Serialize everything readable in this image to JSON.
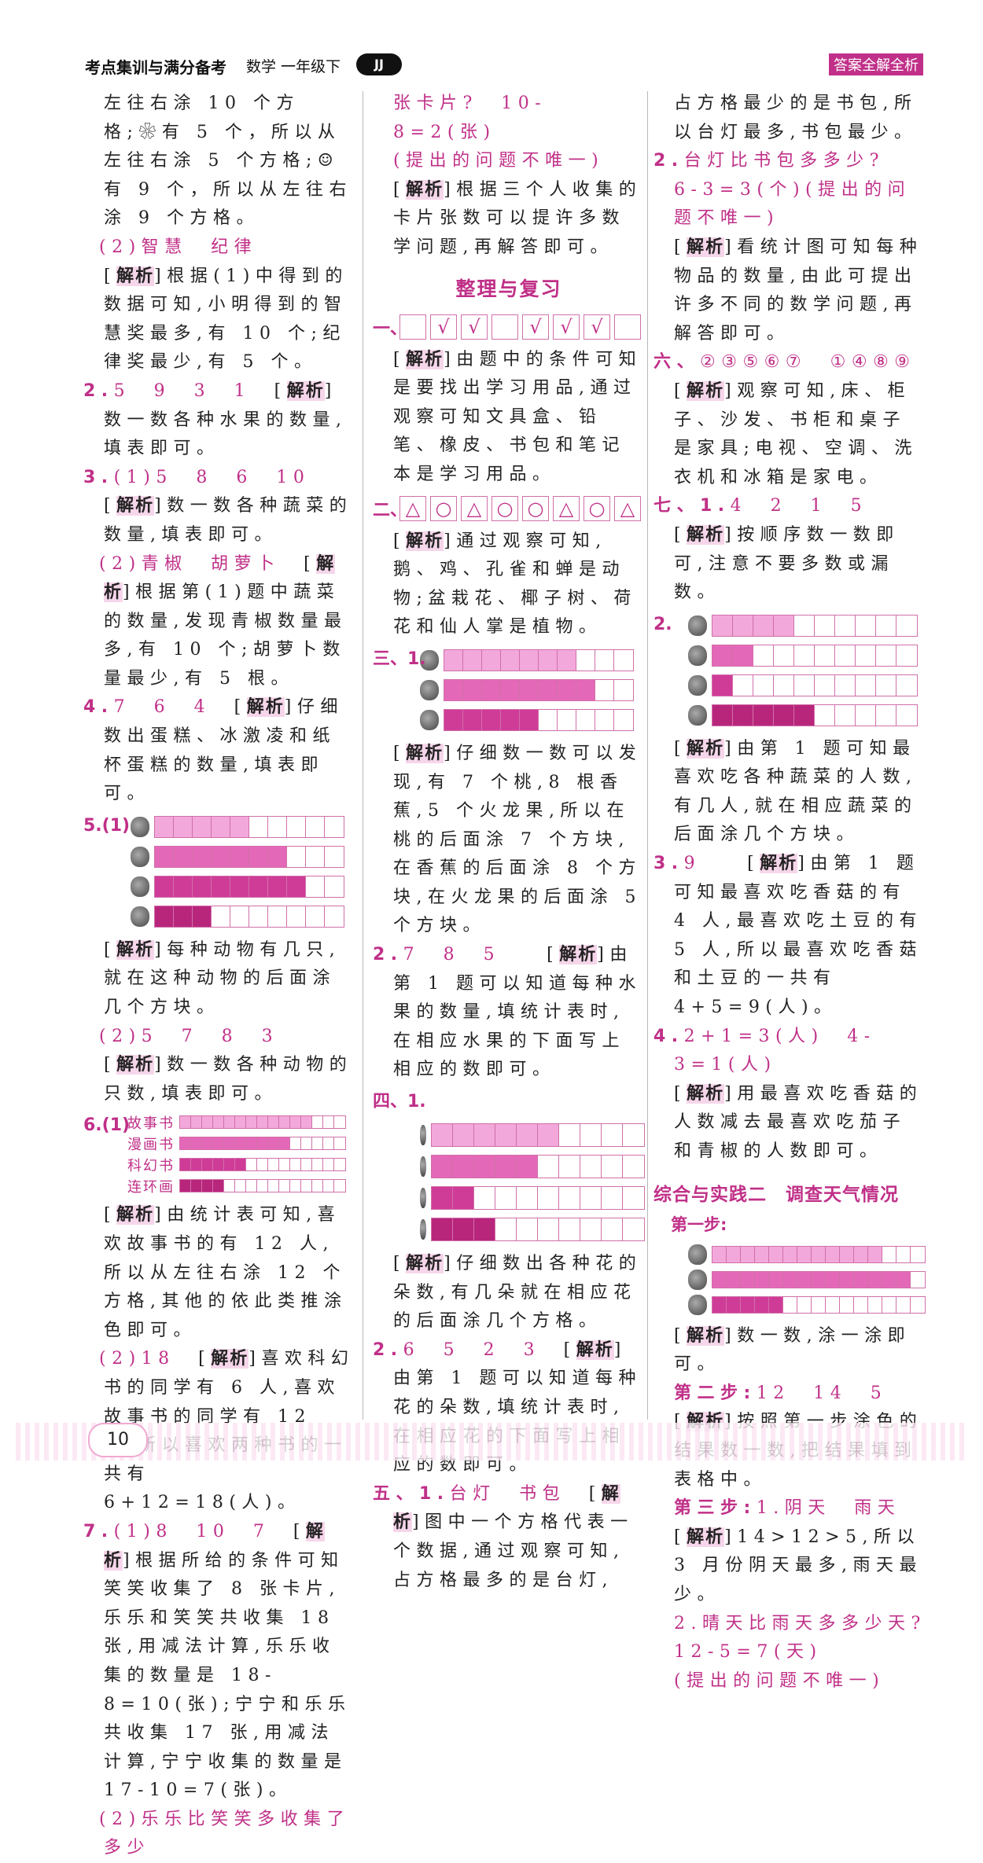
{
  "header": {
    "series": "考点集训与满分备考",
    "subject": "数学 一年级下",
    "edition": "JJ",
    "badge": "答案全解全析"
  },
  "page_number": "10",
  "colors": {
    "accent": "#c03088",
    "bar_shades": [
      "#f2a8da",
      "#e468b8",
      "#cf3c98",
      "#b8267c"
    ]
  },
  "columns": [
    [
      {
        "type": "p",
        "segs": [
          [
            "k",
            "左往右涂 10 个方格;❀有 5 个，所以从左往右涂 5 个方格;☺有 9 个，所以从左往右涂 9 个方格。"
          ]
        ]
      },
      {
        "type": "p",
        "sub": true,
        "segs": [
          [
            "pk",
            "(2)智慧　纪律"
          ]
        ]
      },
      {
        "type": "p",
        "segs": [
          [
            "k",
            "["
          ],
          [
            "j",
            "解析"
          ],
          [
            "k",
            "]根据(1)中得到的数据可知,小明得到的智慧奖最多,有 10 个;纪律奖最少,有 5 个。"
          ]
        ]
      },
      {
        "type": "p",
        "num": true,
        "segs": [
          [
            "pn",
            "2."
          ],
          [
            "pk",
            "5　9　3　1　"
          ],
          [
            "k",
            "["
          ],
          [
            "j",
            "解析"
          ],
          [
            "k",
            "]数一数各种水果的数量,填表即可。"
          ]
        ]
      },
      {
        "type": "p",
        "num": true,
        "segs": [
          [
            "pn",
            "3."
          ],
          [
            "pk",
            "(1)5　8　6　10　"
          ],
          [
            "k",
            "["
          ],
          [
            "j",
            "解析"
          ],
          [
            "k",
            "]数一数各种蔬菜的数量,填表即可。"
          ]
        ]
      },
      {
        "type": "p",
        "sub": true,
        "segs": [
          [
            "pk",
            "(2)青椒　胡萝卜　"
          ],
          [
            "k",
            "["
          ],
          [
            "j",
            "解析"
          ],
          [
            "k",
            "]根据第(1)题中蔬菜的数量,发现青椒数量最多,有 10 个;胡萝卜数量最少,有 5 根。"
          ]
        ]
      },
      {
        "type": "p",
        "num": true,
        "segs": [
          [
            "pn",
            "4."
          ],
          [
            "pk",
            "7　6　4　"
          ],
          [
            "k",
            "["
          ],
          [
            "j",
            "解析"
          ],
          [
            "k",
            "]仔细数出蛋糕、冰激凌和纸杯蛋糕的数量,填表即可。"
          ]
        ]
      },
      {
        "type": "chart",
        "label": "5.(1)",
        "cells": 10,
        "cw": 24,
        "ch": 26,
        "rows": [
          {
            "icon": "lion-icon",
            "value": 5
          },
          {
            "icon": "monkey-icon",
            "value": 7
          },
          {
            "icon": "giraffe-icon",
            "value": 8
          },
          {
            "icon": "ostrich-icon",
            "value": 3
          }
        ]
      },
      {
        "type": "p",
        "segs": [
          [
            "k",
            "["
          ],
          [
            "j",
            "解析"
          ],
          [
            "k",
            "]每种动物有几只,就在这种动物的后面涂几个方块。"
          ]
        ]
      },
      {
        "type": "p",
        "sub": true,
        "segs": [
          [
            "pk",
            "(2)5　7　8　3　　"
          ],
          [
            "k",
            "["
          ],
          [
            "j",
            "解析"
          ],
          [
            "k",
            "]数一数各种动物的只数,填表即可。"
          ]
        ]
      },
      {
        "type": "chart",
        "label": "6.(1)",
        "cells": 15,
        "cw": 14,
        "ch": 15,
        "rows": [
          {
            "label": "故事书",
            "value": 12
          },
          {
            "label": "漫画书",
            "value": 10
          },
          {
            "label": "科幻书",
            "value": 6
          },
          {
            "label": "连环画",
            "value": 4
          }
        ]
      },
      {
        "type": "p",
        "segs": [
          [
            "k",
            "["
          ],
          [
            "j",
            "解析"
          ],
          [
            "k",
            "]由统计表可知,喜欢故事书的有 12 人,所以从左往右涂 12 个方格,其他的依此类推涂色即可。"
          ]
        ]
      },
      {
        "type": "p",
        "sub": true,
        "segs": [
          [
            "pk",
            "(2)18　"
          ],
          [
            "k",
            "["
          ],
          [
            "j",
            "解析"
          ],
          [
            "k",
            "]喜欢科幻书的同学有 6 人,喜欢故事书的同学有 12 人,所以喜欢两种书的一共有 6+12=18(人)。"
          ]
        ]
      },
      {
        "type": "p",
        "num": true,
        "segs": [
          [
            "pn",
            "7."
          ],
          [
            "pk",
            "(1)8　10　7　"
          ],
          [
            "k",
            "["
          ],
          [
            "j",
            "解析"
          ],
          [
            "k",
            "]根据所给的条件可知笑笑收集了 8 张卡片,乐乐和笑笑共收集 18 张,用减法计算,乐乐收集的数量是 18-8=10(张);宁宁和乐乐共收集 17 张,用减法计算,宁宁收集的数量是 17-10=7(张)。"
          ]
        ]
      },
      {
        "type": "p",
        "sub": true,
        "segs": [
          [
            "pk",
            "(2)乐乐比笑笑多收集了多少"
          ]
        ]
      }
    ],
    [
      {
        "type": "p",
        "segs": [
          [
            "pk",
            "张卡片?　10-8=2(张)"
          ]
        ]
      },
      {
        "type": "p",
        "segs": [
          [
            "pk",
            "(提出的问题不唯一)"
          ]
        ]
      },
      {
        "type": "p",
        "segs": [
          [
            "k",
            "["
          ],
          [
            "j",
            "解析"
          ],
          [
            "k",
            "]根据三个人收集的卡片张数可以提许多数学问题,再解答即可。"
          ]
        ]
      },
      {
        "type": "h1",
        "text": "整理与复习"
      },
      {
        "type": "boxes",
        "label": "一、",
        "marks": [
          "",
          "√",
          "√",
          "",
          "√",
          "√",
          "√",
          ""
        ]
      },
      {
        "type": "p",
        "segs": [
          [
            "k",
            "["
          ],
          [
            "j",
            "解析"
          ],
          [
            "k",
            "]由题中的条件可知是要找出学习用品,通过观察可知文具盒、铅笔、橡皮、书包和笔记本是学习用品。"
          ]
        ]
      },
      {
        "type": "boxes",
        "label": "二、",
        "marks": [
          "△",
          "○",
          "△",
          "○",
          "○",
          "△",
          "○",
          "△"
        ]
      },
      {
        "type": "p",
        "segs": [
          [
            "k",
            "["
          ],
          [
            "j",
            "解析"
          ],
          [
            "k",
            "]通过观察可知,鹅、鸡、孔雀和蝉是动物;盆栽花、椰子树、荷花和仙人掌是植物。"
          ]
        ]
      },
      {
        "type": "chart",
        "label": "三、1.",
        "cells": 10,
        "cw": 24,
        "ch": 26,
        "rows": [
          {
            "icon": "peach-icon",
            "value": 7
          },
          {
            "icon": "banana-icon",
            "value": 8
          },
          {
            "icon": "dragon-fruit-icon",
            "value": 5
          }
        ]
      },
      {
        "type": "p",
        "segs": [
          [
            "k",
            "["
          ],
          [
            "j",
            "解析"
          ],
          [
            "k",
            "]仔细数一数可以发现,有 7 个桃,8 根香蕉,5 个火龙果,所以在桃的后面涂 7 个方块,在香蕉的后面涂 8 个方块,在火龙果的后面涂 5 个方块。"
          ]
        ]
      },
      {
        "type": "p",
        "num": true,
        "segs": [
          [
            "pn",
            "2."
          ],
          [
            "pk",
            "7　8　5　　"
          ],
          [
            "k",
            "["
          ],
          [
            "j",
            "解析"
          ],
          [
            "k",
            "]由第 1 题可以知道每种水果的数量,填统计表时,在相应水果的下面写上相应的数即可。"
          ]
        ]
      },
      {
        "type": "chart",
        "label": "四、1.",
        "top": true,
        "cells": 10,
        "cw": 27,
        "ch": 28,
        "rows": [
          {
            "icon": "rose-icon",
            "value": 6
          },
          {
            "icon": "morning-glory-icon",
            "value": 5
          },
          {
            "icon": "lily-icon",
            "value": 2
          },
          {
            "icon": "peony-icon",
            "value": 3
          }
        ]
      },
      {
        "type": "p",
        "segs": [
          [
            "k",
            "["
          ],
          [
            "j",
            "解析"
          ],
          [
            "k",
            "]仔细数出各种花的朵数,有几朵就在相应花的后面涂几个方格。"
          ]
        ]
      },
      {
        "type": "p",
        "num": true,
        "segs": [
          [
            "pn",
            "2."
          ],
          [
            "pk",
            "6　5　2　3　"
          ],
          [
            "k",
            "["
          ],
          [
            "j",
            "解析"
          ],
          [
            "k",
            "]由第 1 题可以知道每种花的朵数,填统计表时,在相应花的下面写上相应的数即可。"
          ]
        ]
      },
      {
        "type": "p",
        "num": true,
        "segs": [
          [
            "pn",
            "五、1."
          ],
          [
            "pk",
            "台灯　书包　"
          ],
          [
            "k",
            "["
          ],
          [
            "j",
            "解析"
          ],
          [
            "k",
            "]图中一个方格代表一个数据,通过观察可知,占方格最多的是台灯,"
          ]
        ]
      }
    ],
    [
      {
        "type": "p",
        "segs": [
          [
            "k",
            "占方格最少的是书包,所以台灯最多,书包最少。"
          ]
        ]
      },
      {
        "type": "p",
        "num": true,
        "segs": [
          [
            "pn",
            "2."
          ],
          [
            "pk",
            "台灯比书包多多少?"
          ]
        ]
      },
      {
        "type": "p",
        "segs": [
          [
            "pk",
            "6-3=3(个)(提出的问题不唯一)"
          ]
        ]
      },
      {
        "type": "p",
        "segs": [
          [
            "k",
            "["
          ],
          [
            "j",
            "解析"
          ],
          [
            "k",
            "]看统计图可知每种物品的数量,由此可提出许多不同的数学问题,再解答即可。"
          ]
        ]
      },
      {
        "type": "p",
        "num": true,
        "segs": [
          [
            "pn",
            "六、"
          ],
          [
            "pk",
            "②③⑤⑥⑦　①④⑧⑨"
          ]
        ]
      },
      {
        "type": "p",
        "segs": [
          [
            "k",
            "["
          ],
          [
            "j",
            "解析"
          ],
          [
            "k",
            "]观察可知,床、柜子、沙发、书柜和桌子是家具;电视、空调、洗衣机和冰箱是家电。"
          ]
        ]
      },
      {
        "type": "p",
        "num": true,
        "segs": [
          [
            "pn",
            "七、1."
          ],
          [
            "pk",
            "4　2　1　5"
          ]
        ]
      },
      {
        "type": "p",
        "segs": [
          [
            "k",
            "["
          ],
          [
            "j",
            "解析"
          ],
          [
            "k",
            "]按顺序数一数即可,注意不要多数或漏数。"
          ]
        ]
      },
      {
        "type": "chart",
        "label": "2.",
        "cells": 10,
        "cw": 26,
        "ch": 26,
        "rows": [
          {
            "icon": "mushroom-icon",
            "value": 4
          },
          {
            "icon": "eggplant-icon",
            "value": 2
          },
          {
            "icon": "pepper-icon",
            "value": 1
          },
          {
            "icon": "potato-icon",
            "value": 5
          }
        ]
      },
      {
        "type": "p",
        "segs": [
          [
            "k",
            "["
          ],
          [
            "j",
            "解析"
          ],
          [
            "k",
            "]由第 1 题可知最喜欢吃各种蔬菜的人数,有几人,就在相应蔬菜的后面涂几个方块。"
          ]
        ]
      },
      {
        "type": "p",
        "num": true,
        "segs": [
          [
            "pn",
            "3."
          ],
          [
            "pk",
            "9　　"
          ],
          [
            "k",
            "["
          ],
          [
            "j",
            "解析"
          ],
          [
            "k",
            "]由第 1 题可知最喜欢吃香菇的有 4 人,最喜欢吃土豆的有 5 人,所以最喜欢吃香菇和土豆的一共有 4+5=9(人)。"
          ]
        ]
      },
      {
        "type": "p",
        "num": true,
        "segs": [
          [
            "pn",
            "4."
          ],
          [
            "pk",
            "2+1=3(人)　4-3=1(人)"
          ]
        ]
      },
      {
        "type": "p",
        "segs": [
          [
            "k",
            "["
          ],
          [
            "j",
            "解析"
          ],
          [
            "k",
            "]用最喜欢吃香菇的人数减去最喜欢吃茄子和青椒的人数即可。"
          ]
        ]
      },
      {
        "type": "h2",
        "text": "综合与实践二　调查天气情况"
      },
      {
        "type": "h3",
        "text": "第一步:"
      },
      {
        "type": "chart",
        "label": "",
        "cells": 15,
        "cw": 18,
        "ch": 20,
        "rows": [
          {
            "icon": "sun-icon",
            "value": 12
          },
          {
            "icon": "cloud-icon",
            "value": 14
          },
          {
            "icon": "rain-icon",
            "value": 5
          }
        ]
      },
      {
        "type": "p",
        "segs": [
          [
            "k",
            "["
          ],
          [
            "j",
            "解析"
          ],
          [
            "k",
            "]数一数,涂一涂即可。"
          ]
        ]
      },
      {
        "type": "p",
        "segs": [
          [
            "pn",
            "第二步:"
          ],
          [
            "pk",
            "12　14　5"
          ]
        ]
      },
      {
        "type": "p",
        "segs": [
          [
            "k",
            "["
          ],
          [
            "j",
            "解析"
          ],
          [
            "k",
            "]按照第一步涂色的结果数一数,把结果填到表格中。"
          ]
        ]
      },
      {
        "type": "p",
        "segs": [
          [
            "pn",
            "第三步:"
          ],
          [
            "pk",
            "1.阴天　雨天"
          ]
        ]
      },
      {
        "type": "p",
        "segs": [
          [
            "k",
            "["
          ],
          [
            "j",
            "解析"
          ],
          [
            "k",
            "]14>12>5,所以 3 月份阴天最多,雨天最少。"
          ]
        ]
      },
      {
        "type": "p",
        "segs": [
          [
            "pk",
            "2.晴天比雨天多多少天?"
          ]
        ]
      },
      {
        "type": "p",
        "segs": [
          [
            "pk",
            "12-5=7(天)"
          ]
        ]
      },
      {
        "type": "p",
        "segs": [
          [
            "pk",
            "(提出的问题不唯一)"
          ]
        ]
      }
    ]
  ]
}
